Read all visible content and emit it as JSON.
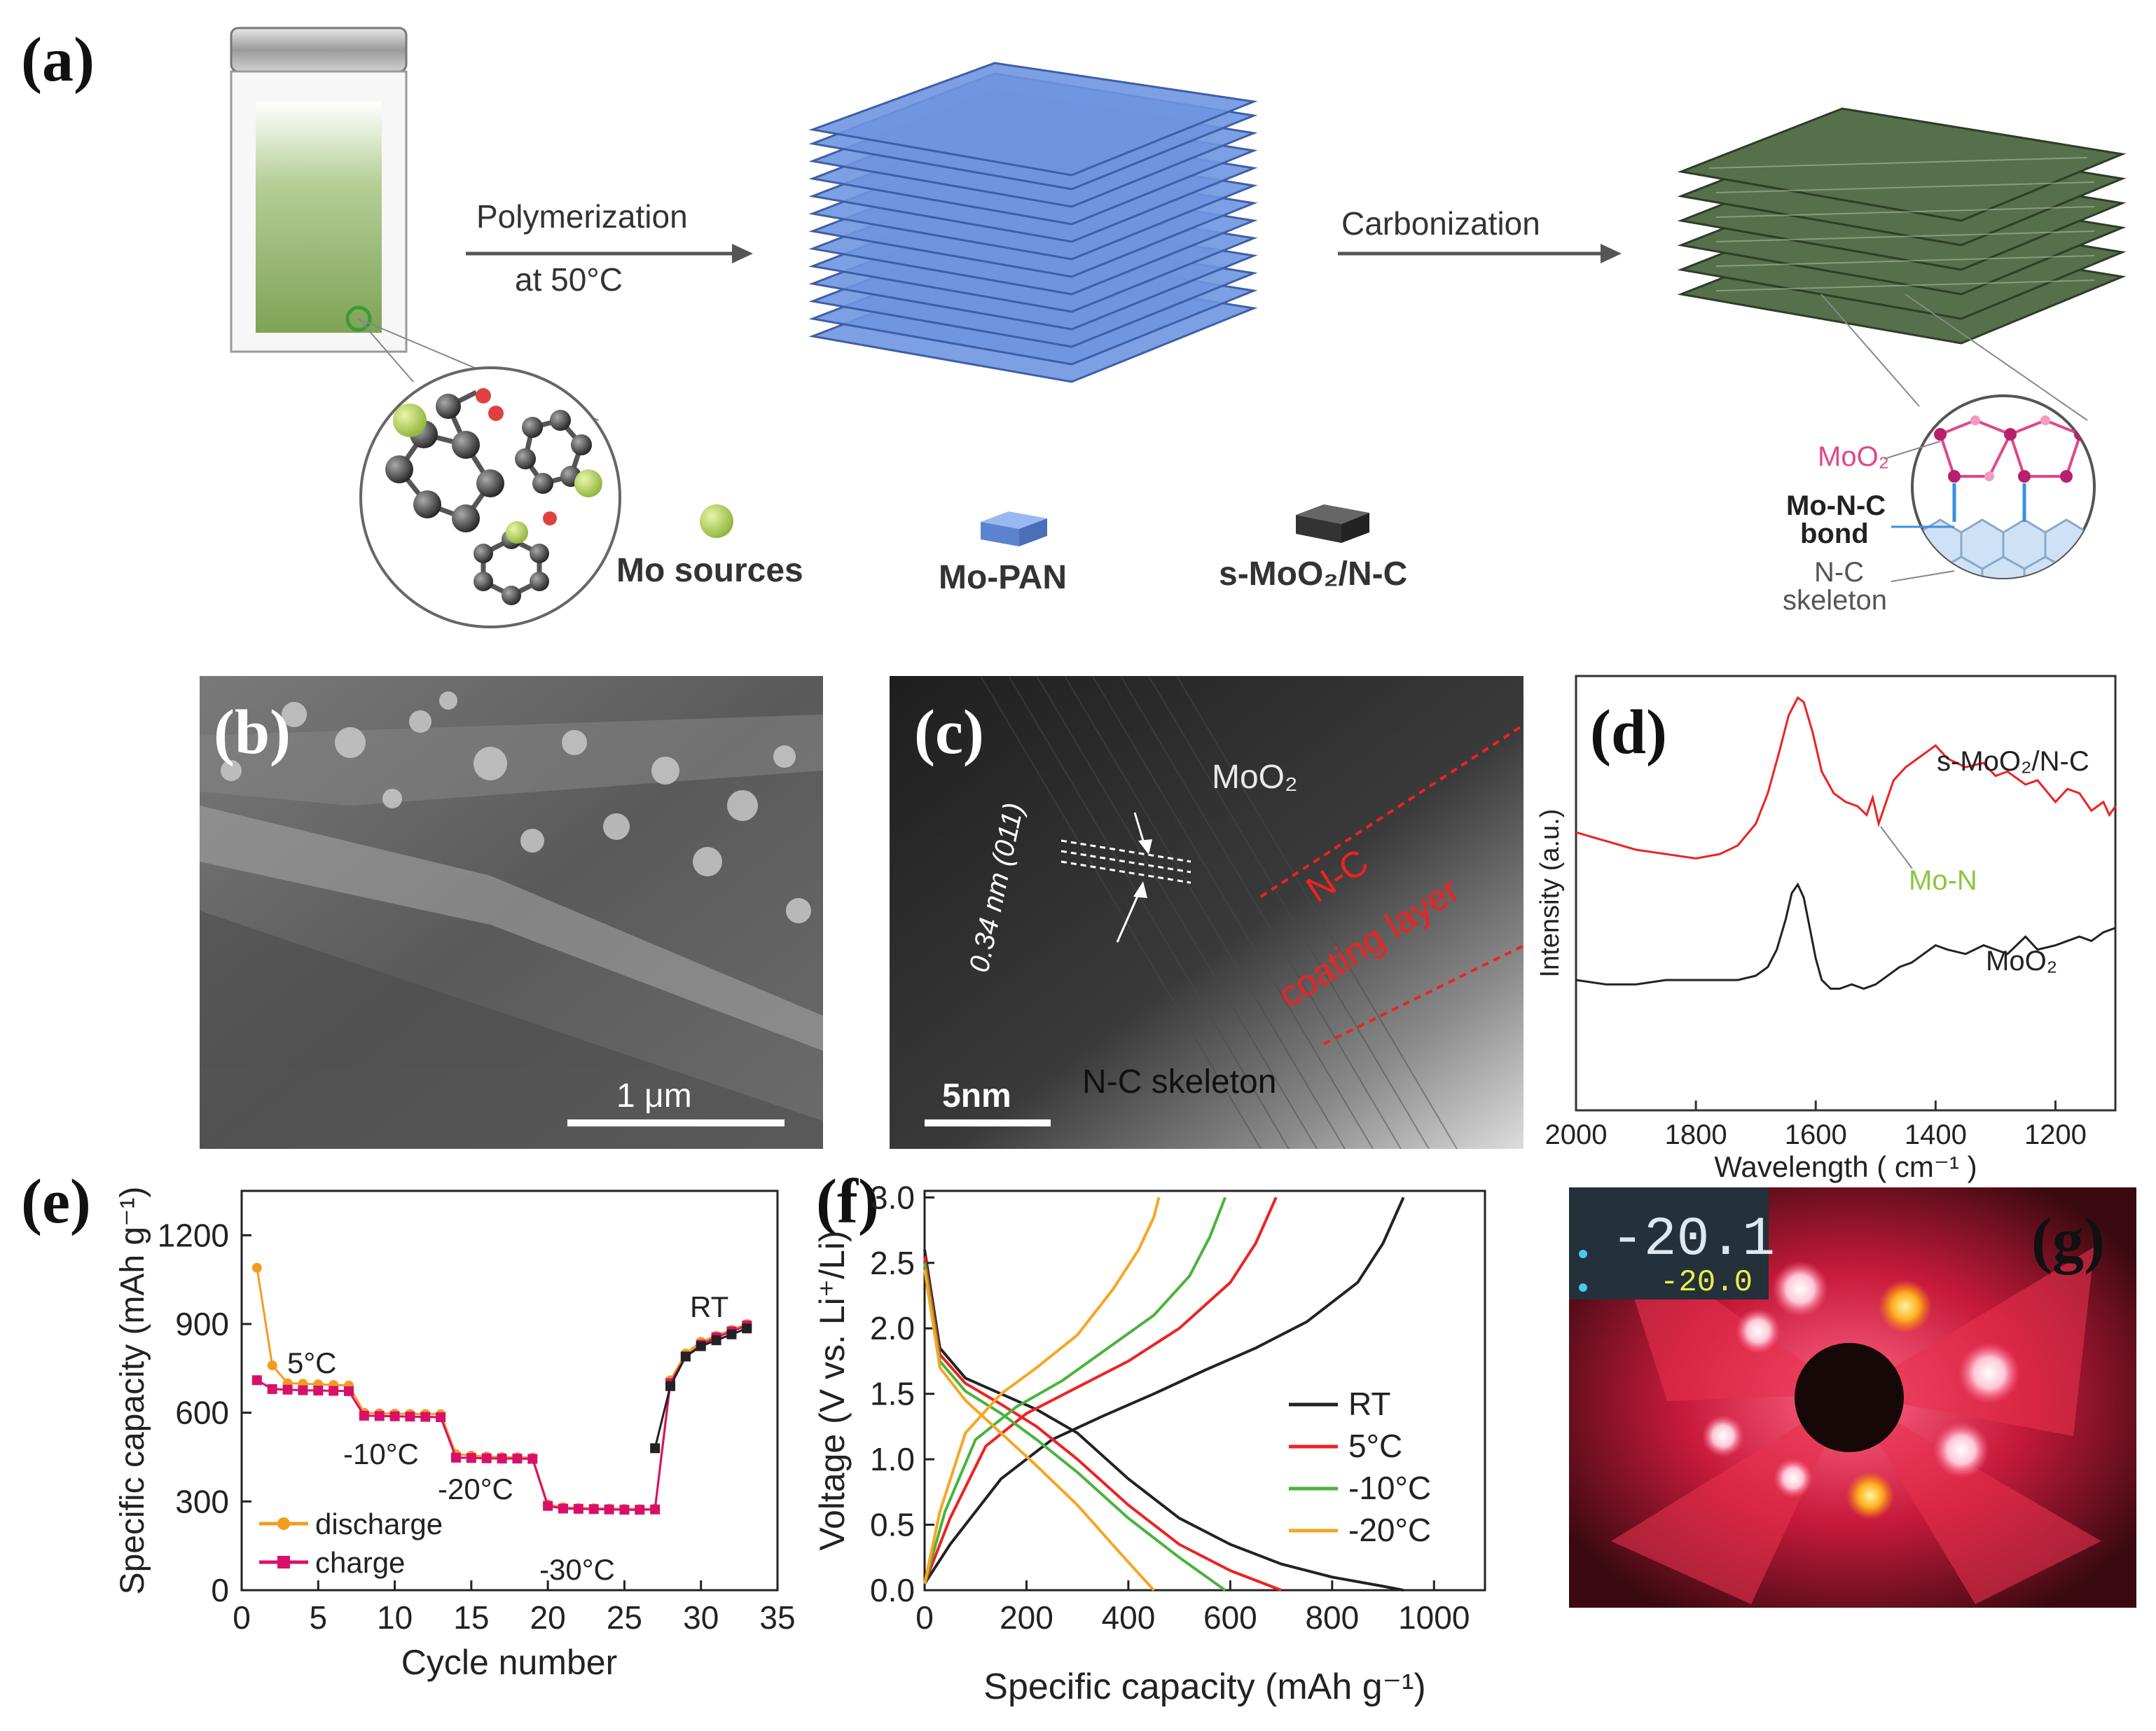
{
  "panel_labels": {
    "a": "(a)",
    "b": "(b)",
    "c": "(c)",
    "d": "(d)",
    "e": "(e)",
    "f": "(f)",
    "g": "(g)"
  },
  "schematic": {
    "step1_line1": "Polymerization",
    "step1_line2": "at 50°C",
    "step2": "Carbonization",
    "legend_mo_sources": "Mo sources",
    "legend_mo_pan": "Mo-PAN",
    "legend_product": "s-MoO₂/N-C",
    "zoom_moo2": "MoO₂",
    "zoom_bond_line1": "Mo-N-C",
    "zoom_bond_line2": "bond",
    "zoom_skeleton_line1": "N-C",
    "zoom_skeleton_line2": "skeleton"
  },
  "sem": {
    "scale_bar": "1 μm"
  },
  "tem": {
    "phase": "MoO₂",
    "lattice": "0.34 nm (011)",
    "coating_line1": "N-C",
    "coating_line2": "coating layer",
    "skeleton": "N-C skeleton",
    "scale_bar": "5nm"
  },
  "photo": {
    "temp_reading": "-20.1",
    "temp_set": "-20.0"
  },
  "colors": {
    "red": "#ee2222",
    "black": "#222222",
    "orange": "#f39c1f",
    "pink": "#d8106a",
    "green": "#48b43c",
    "light_orange": "#f6a623",
    "lime": "#8cc63f",
    "blue_layer": "#6f95e0",
    "magenta": "#e0478a"
  },
  "chart_data": [
    {
      "id": "d",
      "type": "line",
      "title": "",
      "xlabel": "Wavelength ( cm⁻¹ )",
      "ylabel": "Intensity (a.u.)",
      "xlim": [
        2000,
        1100
      ],
      "ylim": [
        0,
        1
      ],
      "x_ticks": [
        2000,
        1800,
        1600,
        1400,
        1200
      ],
      "series": [
        {
          "name": "s-MoO₂/N-C",
          "color": "#ee2222",
          "x": [
            2000,
            1950,
            1900,
            1850,
            1800,
            1760,
            1730,
            1700,
            1680,
            1660,
            1645,
            1630,
            1620,
            1605,
            1590,
            1570,
            1550,
            1530,
            1515,
            1505,
            1495,
            1485,
            1470,
            1450,
            1420,
            1400,
            1380,
            1350,
            1320,
            1300,
            1280,
            1250,
            1230,
            1200,
            1180,
            1160,
            1140,
            1120,
            1110,
            1100
          ],
          "y": [
            0.64,
            0.62,
            0.6,
            0.59,
            0.58,
            0.59,
            0.61,
            0.66,
            0.73,
            0.83,
            0.91,
            0.95,
            0.94,
            0.87,
            0.78,
            0.73,
            0.71,
            0.7,
            0.68,
            0.72,
            0.66,
            0.7,
            0.76,
            0.79,
            0.82,
            0.84,
            0.81,
            0.79,
            0.8,
            0.77,
            0.78,
            0.75,
            0.76,
            0.71,
            0.74,
            0.73,
            0.69,
            0.71,
            0.68,
            0.7
          ]
        },
        {
          "name": "MoO₂",
          "color": "#222222",
          "x": [
            2000,
            1950,
            1900,
            1850,
            1800,
            1760,
            1730,
            1700,
            1680,
            1665,
            1650,
            1640,
            1630,
            1620,
            1610,
            1600,
            1590,
            1575,
            1560,
            1540,
            1520,
            1500,
            1480,
            1460,
            1440,
            1420,
            1400,
            1380,
            1350,
            1320,
            1300,
            1280,
            1250,
            1230,
            1200,
            1180,
            1160,
            1140,
            1120,
            1100
          ],
          "y": [
            0.3,
            0.29,
            0.29,
            0.3,
            0.3,
            0.3,
            0.3,
            0.31,
            0.33,
            0.37,
            0.44,
            0.5,
            0.52,
            0.49,
            0.42,
            0.35,
            0.3,
            0.28,
            0.28,
            0.29,
            0.28,
            0.29,
            0.31,
            0.33,
            0.34,
            0.36,
            0.38,
            0.37,
            0.36,
            0.38,
            0.37,
            0.36,
            0.4,
            0.37,
            0.38,
            0.39,
            0.4,
            0.39,
            0.41,
            0.42
          ]
        }
      ],
      "labels": {
        "upper": "s-MoO₂/N-C",
        "lower": "MoO₂",
        "annotation": "Mo-N"
      }
    },
    {
      "id": "e",
      "type": "scatter",
      "title": "",
      "xlabel": "Cycle number",
      "ylabel": "Specific capacity (mAh g⁻¹)",
      "xlim": [
        0,
        35
      ],
      "ylim": [
        0,
        1350
      ],
      "x_ticks": [
        0,
        5,
        10,
        15,
        20,
        25,
        30,
        35
      ],
      "y_ticks": [
        0,
        300,
        600,
        900,
        1200
      ],
      "series": [
        {
          "name": "discharge",
          "color": "#f39c1f",
          "x": [
            1,
            2,
            3,
            4,
            5,
            6,
            7,
            8,
            9,
            10,
            11,
            12,
            13,
            14,
            15,
            16,
            17,
            18,
            19,
            20,
            21,
            22,
            23,
            24,
            25,
            26,
            27,
            28,
            29,
            30,
            31,
            32,
            33
          ],
          "y": [
            1090,
            760,
            700,
            698,
            696,
            694,
            692,
            600,
            598,
            597,
            596,
            596,
            595,
            460,
            455,
            452,
            450,
            449,
            448,
            290,
            280,
            278,
            277,
            276,
            275,
            274,
            275,
            710,
            800,
            840,
            860,
            880,
            900
          ]
        },
        {
          "name": "charge",
          "color": "#d8106a",
          "x": [
            1,
            2,
            3,
            4,
            5,
            6,
            7,
            8,
            9,
            10,
            11,
            12,
            13,
            14,
            15,
            16,
            17,
            18,
            19,
            20,
            21,
            22,
            23,
            24,
            25,
            26,
            27,
            28,
            29,
            30,
            31,
            32,
            33
          ],
          "y": [
            710,
            680,
            678,
            676,
            675,
            674,
            673,
            590,
            589,
            588,
            587,
            586,
            585,
            448,
            447,
            446,
            445,
            445,
            444,
            285,
            276,
            275,
            274,
            273,
            272,
            272,
            273,
            700,
            790,
            830,
            855,
            875,
            895
          ]
        },
        {
          "name": "RT",
          "color": "#222222",
          "x": [
            27,
            28,
            29,
            30,
            31,
            32,
            33
          ],
          "y": [
            480,
            690,
            790,
            825,
            845,
            865,
            885
          ]
        }
      ],
      "annotations": [
        "5°C",
        "-10°C",
        "-20°C",
        "-30°C",
        "RT"
      ],
      "legend": [
        "discharge",
        "charge"
      ]
    },
    {
      "id": "f",
      "type": "line",
      "title": "",
      "xlabel": "Specific capacity (mAh g⁻¹)",
      "ylabel": "Voltage (V vs. Li⁺/Li)",
      "xlim": [
        0,
        1100
      ],
      "ylim": [
        0,
        3.05
      ],
      "x_ticks": [
        0,
        200,
        400,
        600,
        800,
        1000
      ],
      "y_ticks": [
        0.0,
        0.5,
        1.0,
        1.5,
        2.0,
        2.5,
        3.0
      ],
      "legend": [
        "RT",
        "5°C",
        "-10°C",
        "-20°C"
      ],
      "series": [
        {
          "name": "RT",
          "color": "#222222",
          "discharge": {
            "x": [
              0,
              30,
              80,
              150,
              220,
              300,
              400,
              500,
              600,
              700,
              800,
              900,
              940
            ],
            "y": [
              2.6,
              1.85,
              1.62,
              1.5,
              1.38,
              1.2,
              0.85,
              0.55,
              0.35,
              0.2,
              0.1,
              0.03,
              0.0
            ]
          },
          "charge": {
            "x": [
              0,
              50,
              150,
              250,
              350,
              450,
              550,
              650,
              750,
              850,
              900,
              940
            ],
            "y": [
              0.05,
              0.35,
              0.85,
              1.15,
              1.33,
              1.5,
              1.68,
              1.85,
              2.05,
              2.35,
              2.65,
              3.0
            ]
          }
        },
        {
          "name": "5°C",
          "color": "#ee2222",
          "discharge": {
            "x": [
              0,
              30,
              80,
              150,
              220,
              300,
              400,
              500,
              600,
              700
            ],
            "y": [
              2.55,
              1.8,
              1.58,
              1.42,
              1.25,
              1.0,
              0.65,
              0.35,
              0.15,
              0.0
            ]
          },
          "charge": {
            "x": [
              0,
              50,
              120,
              200,
              300,
              400,
              500,
              600,
              650,
              690
            ],
            "y": [
              0.05,
              0.55,
              1.1,
              1.35,
              1.55,
              1.75,
              2.0,
              2.35,
              2.65,
              3.0
            ]
          }
        },
        {
          "name": "-10°C",
          "color": "#48b43c",
          "discharge": {
            "x": [
              0,
              30,
              80,
              150,
              220,
              300,
              400,
              500,
              590
            ],
            "y": [
              2.5,
              1.75,
              1.52,
              1.35,
              1.15,
              0.9,
              0.55,
              0.25,
              0.0
            ]
          },
          "charge": {
            "x": [
              0,
              40,
              100,
              180,
              270,
              360,
              450,
              520,
              560,
              590
            ],
            "y": [
              0.05,
              0.6,
              1.15,
              1.4,
              1.6,
              1.85,
              2.1,
              2.4,
              2.7,
              3.0
            ]
          }
        },
        {
          "name": "-20°C",
          "color": "#f6a623",
          "discharge": {
            "x": [
              0,
              30,
              80,
              150,
              220,
              300,
              380,
              450
            ],
            "y": [
              2.45,
              1.7,
              1.45,
              1.2,
              0.95,
              0.65,
              0.3,
              0.0
            ]
          },
          "charge": {
            "x": [
              0,
              30,
              80,
              150,
              220,
              300,
              370,
              420,
              450,
              460
            ],
            "y": [
              0.05,
              0.6,
              1.2,
              1.5,
              1.7,
              1.95,
              2.3,
              2.6,
              2.85,
              3.0
            ]
          }
        }
      ]
    }
  ]
}
